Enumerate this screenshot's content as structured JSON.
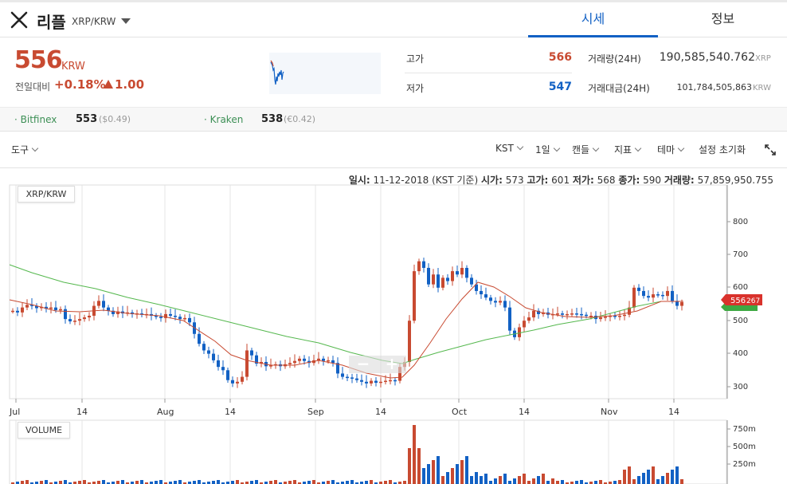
{
  "header": {
    "coin_name": "리플",
    "pair": "XRP/KRW",
    "tabs": [
      {
        "label": "시세",
        "active": true
      },
      {
        "label": "정보",
        "active": false
      }
    ]
  },
  "price": {
    "current": "556",
    "unit": "KRW",
    "change_label": "전일대비",
    "change_rate": "+0.18%",
    "change_amount": "1.00",
    "color_up": "#c84a31",
    "color_down": "#1261c4"
  },
  "stats": {
    "high_label": "고가",
    "high_value": "566",
    "low_label": "저가",
    "low_value": "547",
    "volume_label": "거래량(24H)",
    "volume_value": "190,585,540.762",
    "volume_unit": "XRP",
    "amount_label": "거래대금(24H)",
    "amount_value": "101,784,505,863",
    "amount_unit": "KRW"
  },
  "exchanges": [
    {
      "name": "Bitfinex",
      "price": "553",
      "sub": "($0.49)"
    },
    {
      "name": "Kraken",
      "price": "538",
      "sub": "(€0.42)"
    }
  ],
  "toolbar": {
    "tools": "도구",
    "timezone": "KST",
    "interval": "1일",
    "candle": "캔들",
    "indicator": "지표",
    "theme": "테마",
    "reset": "설정 초기화"
  },
  "ohlc": {
    "date_label": "일시:",
    "date_value": "11-12-2018 (KST 기준)",
    "open_label": "시가:",
    "open_value": "573",
    "high_label": "고가:",
    "high_value": "601",
    "low_label": "저가:",
    "low_value": "568",
    "close_label": "종가:",
    "close_value": "590",
    "volume_label": "거래량:",
    "volume_value": "57,859,950.755"
  },
  "chart": {
    "pair_label": "XRP/KRW",
    "volume_label": "VOLUME",
    "price_ticks": [
      "800",
      "700",
      "600",
      "500",
      "400",
      "300"
    ],
    "volume_ticks": [
      "750m",
      "500m",
      "250m"
    ],
    "date_ticks": [
      "Jul",
      "14",
      "Aug",
      "14",
      "Sep",
      "14",
      "Oct",
      "14",
      "Nov",
      "14"
    ],
    "last_price_tag": "556",
    "last_price_tag2": "267",
    "zoom_out": "−",
    "zoom_in": "+"
  }
}
